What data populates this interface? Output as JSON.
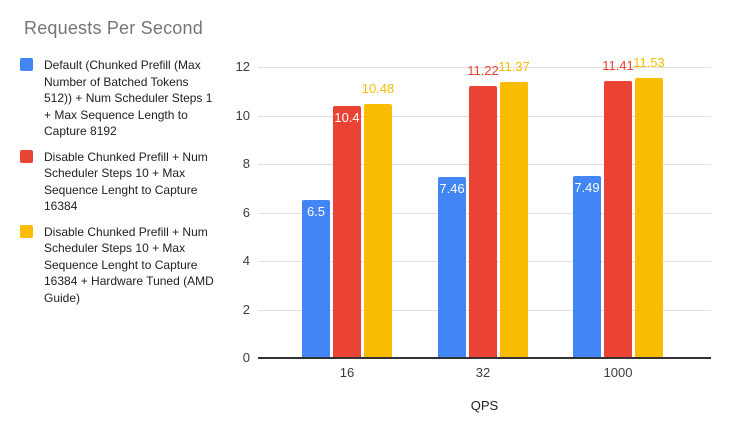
{
  "title": "Requests Per Second",
  "colors": {
    "title_text": "#757575",
    "legend_text": "#212121",
    "gridline": "#e0e0e0",
    "axis_line": "#333333",
    "tick_text": "#3c3c3c",
    "inside_label": "#ffffff",
    "series_blue": "#4285F4",
    "series_red": "#EA4335",
    "series_yellow": "#FBBC04"
  },
  "chart_data": {
    "type": "bar",
    "title": "Requests Per Second",
    "categories": [
      "16",
      "32",
      "1000"
    ],
    "xlabel": "QPS",
    "ylabel": "",
    "ylim": [
      0,
      12
    ],
    "yticks": [
      0,
      2,
      4,
      6,
      8,
      10,
      12
    ],
    "grid": true,
    "legend_position": "left",
    "series": [
      {
        "name": "Default (Chunked Prefill (Max Number of Batched Tokens 512)) + Num Scheduler Steps 1 + Max Sequence Length to Capture 8192",
        "color": "#4285F4",
        "values": [
          6.5,
          7.46,
          7.49
        ],
        "labels": [
          "6.5",
          "7.46",
          "7.49"
        ],
        "label_placement": [
          "inside",
          "inside",
          "inside"
        ]
      },
      {
        "name": "Disable Chunked Prefill + Num Scheduler Steps 10 + Max Sequence Lenght to Capture 16384",
        "color": "#EA4335",
        "values": [
          10.4,
          11.22,
          11.41
        ],
        "labels": [
          "10.4",
          "11.22",
          "11.41"
        ],
        "label_placement": [
          "inside",
          "outside",
          "outside"
        ]
      },
      {
        "name": "Disable Chunked Prefill + Num Scheduler Steps 10 + Max Sequence Lenght to Capture 16384 + Hardware Tuned (AMD Guide)",
        "color": "#FBBC04",
        "values": [
          10.48,
          11.37,
          11.53
        ],
        "labels": [
          "10.48",
          "11.37",
          "11.53"
        ],
        "label_placement": [
          "outside",
          "outside",
          "outside"
        ]
      }
    ]
  }
}
